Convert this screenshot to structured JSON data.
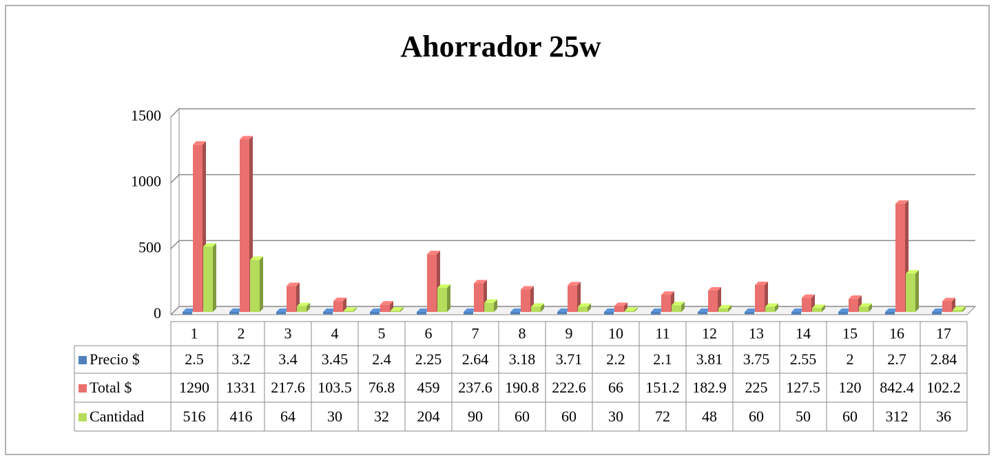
{
  "chart_data": {
    "type": "bar",
    "title": "Ahorrador 25w",
    "categories": [
      "1",
      "2",
      "3",
      "4",
      "5",
      "6",
      "7",
      "8",
      "9",
      "10",
      "11",
      "12",
      "13",
      "14",
      "15",
      "16",
      "17"
    ],
    "series": [
      {
        "name": "Precio $",
        "color": "#4f81bd",
        "values": [
          2.5,
          3.2,
          3.4,
          3.45,
          2.4,
          2.25,
          2.64,
          3.18,
          3.71,
          2.2,
          2.1,
          3.81,
          3.75,
          2.55,
          2,
          2.7,
          2.84
        ]
      },
      {
        "name": "Total $",
        "color": "#e9706e",
        "values": [
          1290,
          1331,
          217.6,
          103.5,
          76.8,
          459,
          237.6,
          190.8,
          222.6,
          66,
          151.2,
          182.9,
          225,
          127.5,
          120,
          842.4,
          102.2
        ]
      },
      {
        "name": "Cantidad",
        "color": "#b5dc5a",
        "values": [
          516,
          416,
          64,
          30,
          32,
          204,
          90,
          60,
          60,
          30,
          72,
          48,
          60,
          50,
          60,
          312,
          36
        ]
      }
    ],
    "ylim": [
      0,
      1500
    ],
    "yticks": [
      0,
      500,
      1000,
      1500
    ],
    "grid": true,
    "data_table": true
  }
}
